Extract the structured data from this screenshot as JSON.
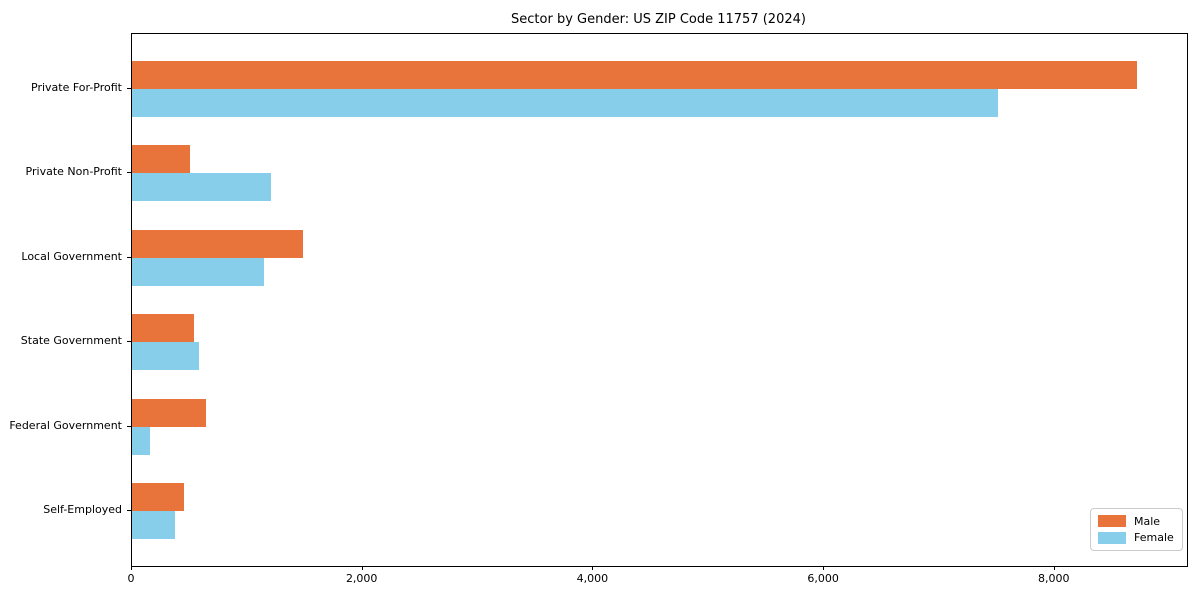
{
  "figure": {
    "title": "Sector by Gender: US ZIP Code 11757 (2024)"
  },
  "chart_data": {
    "type": "bar",
    "orientation": "horizontal",
    "title": "Sector by Gender: US ZIP Code 11757 (2024)",
    "categories": [
      "Private For-Profit",
      "Private Non-Profit",
      "Local Government",
      "State Government",
      "Federal Government",
      "Self-Employed"
    ],
    "series": [
      {
        "name": "Male",
        "color": "#e8743b",
        "values": [
          8710,
          505,
          1480,
          540,
          640,
          450
        ]
      },
      {
        "name": "Female",
        "color": "#87ceeb",
        "values": [
          7510,
          1205,
          1140,
          580,
          160,
          370
        ]
      }
    ],
    "xlabel": "",
    "ylabel": "",
    "xlim": [
      0,
      9146
    ],
    "x_ticks": [
      {
        "value": 0,
        "label": "0"
      },
      {
        "value": 2000,
        "label": "2,000"
      },
      {
        "value": 4000,
        "label": "4,000"
      },
      {
        "value": 6000,
        "label": "6,000"
      },
      {
        "value": 8000,
        "label": "8,000"
      }
    ],
    "legend_position": "lower right",
    "grid": false
  }
}
